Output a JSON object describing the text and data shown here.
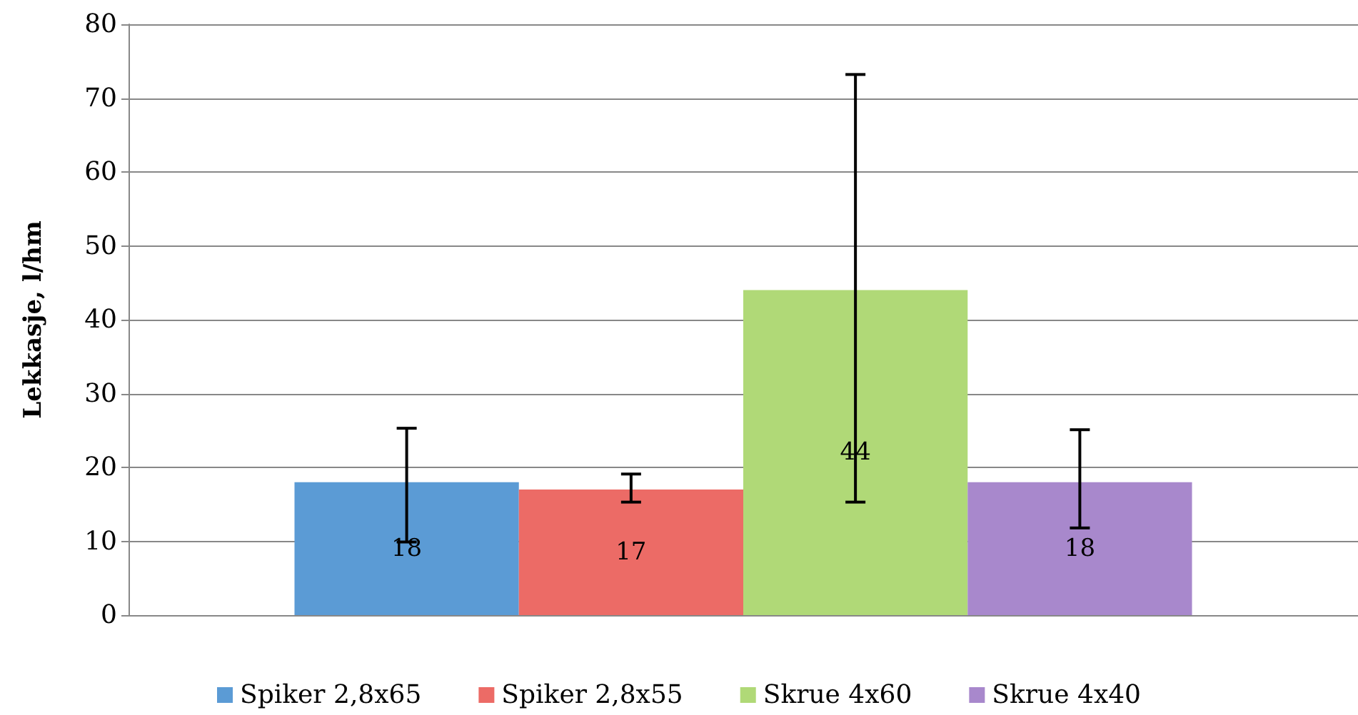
{
  "chart_data": {
    "type": "bar",
    "ylabel": "Lekkasje, l/hm",
    "categories": [
      null
    ],
    "series": [
      {
        "name": "Spiker 2,8x65",
        "color": "#5b9bd5",
        "values": [
          18
        ],
        "errors": [
          [
            9.9,
            25.3
          ]
        ]
      },
      {
        "name": "Spiker 2,8x55",
        "color": "#ec6b66",
        "values": [
          17
        ],
        "errors": [
          [
            15.3,
            19.1
          ]
        ]
      },
      {
        "name": "Skrue 4x60",
        "color": "#b0d977",
        "values": [
          44
        ],
        "errors": [
          [
            15.3,
            73.2
          ]
        ]
      },
      {
        "name": "Skrue 4x40",
        "color": "#a888cc",
        "values": [
          18
        ],
        "errors": [
          [
            11.8,
            25.1
          ]
        ]
      }
    ],
    "ylim": [
      0,
      80
    ],
    "yticks": [
      0,
      10,
      20,
      30,
      40,
      50,
      60,
      70,
      80
    ],
    "grid": "y",
    "legend": "bottom",
    "data_labels": true
  }
}
